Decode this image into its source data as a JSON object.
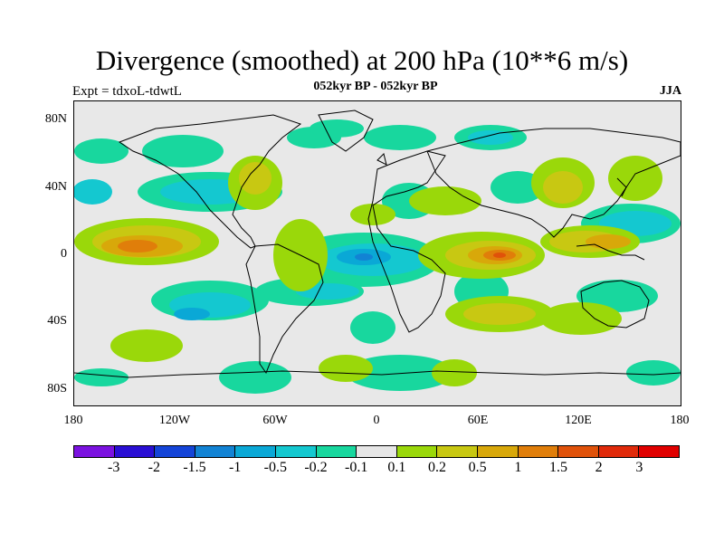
{
  "header": {
    "title": "Divergence (smoothed) at 200 hPa (10**6 m/s)",
    "subtitle": "052kyr BP - 052kyr BP",
    "experiment": "Expt = tdxoL-tdwtL",
    "season": "JJA"
  },
  "axes": {
    "lat_ticks": [
      "80N",
      "40N",
      "0",
      "40S",
      "80S"
    ],
    "lon_ticks": [
      "180",
      "120W",
      "60W",
      "0",
      "60E",
      "120E",
      "180"
    ]
  },
  "colorbar": {
    "labels": [
      "-3",
      "-2",
      "-1.5",
      "-1",
      "-0.5",
      "-0.2",
      "-0.1",
      "0.1",
      "0.2",
      "0.5",
      "1",
      "1.5",
      "2",
      "3"
    ],
    "colors": [
      "#7b12e0",
      "#2a0fd4",
      "#1444d8",
      "#1283d4",
      "#0aa8d6",
      "#14c8d0",
      "#18d79e",
      "#e6e6e6",
      "#9ad80a",
      "#c8c812",
      "#d8a80a",
      "#e07e0a",
      "#e0520a",
      "#e02a0a",
      "#e00000"
    ]
  },
  "colors": {
    "background": "#ffffff",
    "neutral_fill": "#e8e8e8",
    "coastline": "#000000"
  }
}
